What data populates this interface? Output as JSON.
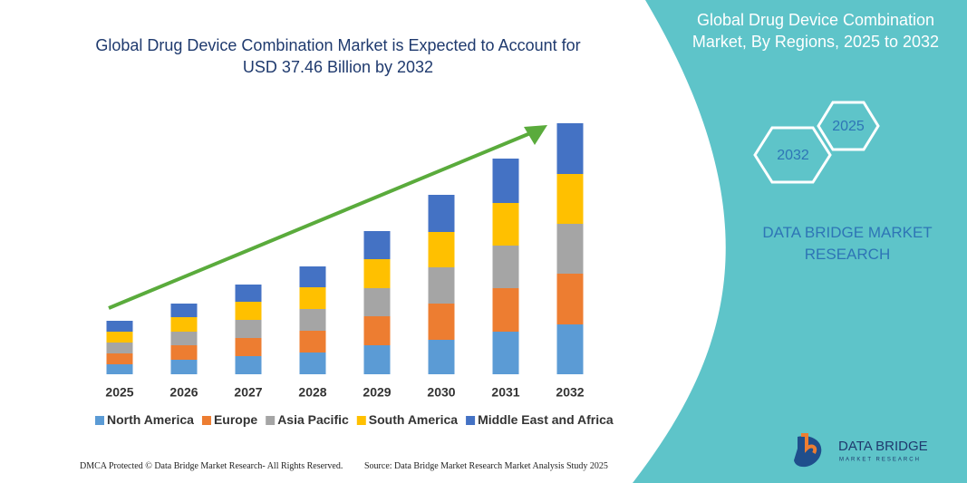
{
  "chart_data": {
    "type": "stacked_bar",
    "title": "Global Drug Device Combination Market is Expected to Account for USD 37.46 Billion by 2032",
    "categories": [
      "2025",
      "2026",
      "2027",
      "2028",
      "2029",
      "2030",
      "2031",
      "2032"
    ],
    "series": [
      {
        "name": "North America",
        "color": "#5b9bd5",
        "values": [
          11,
          16,
          20,
          24,
          32,
          38,
          47,
          55
        ]
      },
      {
        "name": "Europe",
        "color": "#ed7d31",
        "values": [
          12,
          16,
          20,
          24,
          32,
          40,
          48,
          56
        ]
      },
      {
        "name": "Asia Pacific",
        "color": "#a5a5a5",
        "values": [
          12,
          15,
          20,
          24,
          31,
          40,
          47,
          55
        ]
      },
      {
        "name": "South America",
        "color": "#ffc000",
        "values": [
          12,
          16,
          20,
          24,
          32,
          39,
          47,
          55
        ]
      },
      {
        "name": "Middle East and Africa",
        "color": "#4472c4",
        "values": [
          12,
          15,
          19,
          23,
          31,
          41,
          49,
          56
        ]
      }
    ]
  },
  "panel": {
    "title": "Global Drug Device Combination Market, By Regions, 2025 to 2032",
    "hex_left": "2032",
    "hex_right": "2025",
    "brand": "DATA BRIDGE MARKET RESEARCH"
  },
  "logo": {
    "name": "DATA BRIDGE",
    "tagline": "MARKET RESEARCH"
  },
  "footer": {
    "left": "DMCA Protected © Data Bridge Market Research- All Rights Reserved.",
    "right": "Source: Data Bridge Market Research Market Analysis Study 2025"
  }
}
